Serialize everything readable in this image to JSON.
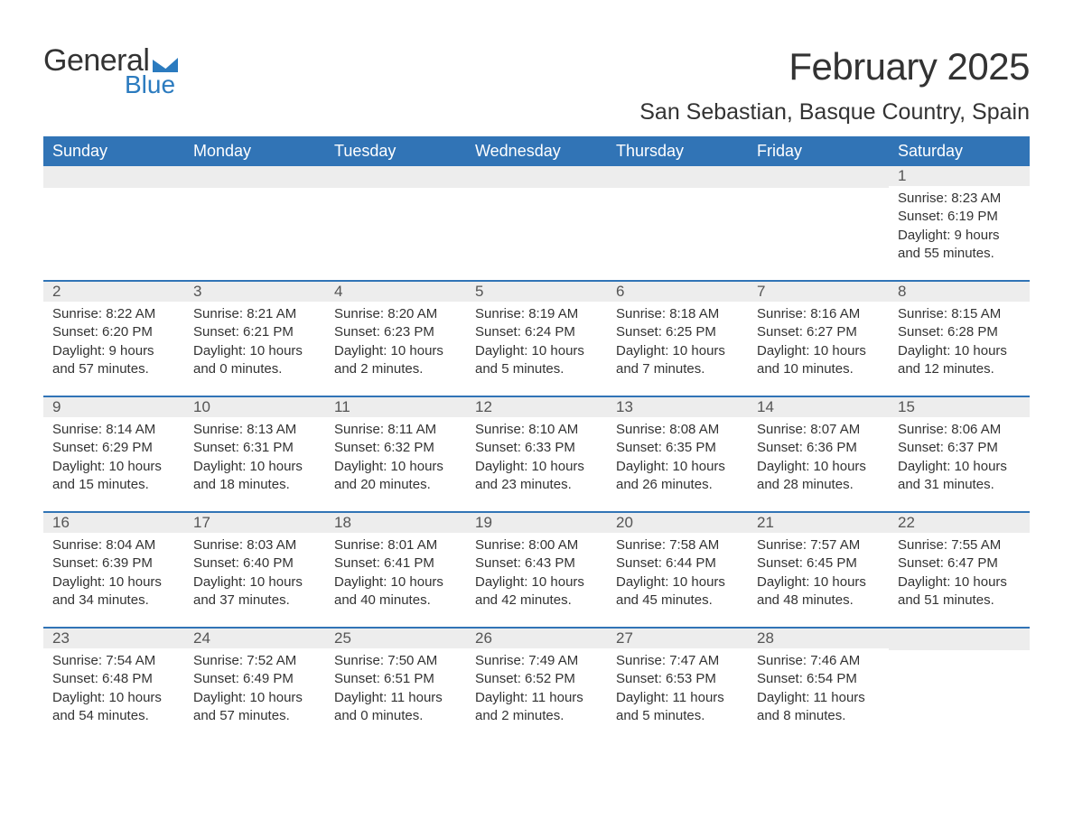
{
  "logo": {
    "line1": "General",
    "line2": "Blue",
    "mark_color": "#2b7bbf"
  },
  "title": "February 2025",
  "location": "San Sebastian, Basque Country, Spain",
  "colors": {
    "header_bg": "#3174b6",
    "header_text": "#ffffff",
    "daynum_bg": "#ededed",
    "divider": "#3174b6",
    "text": "#333333"
  },
  "weekdays": [
    "Sunday",
    "Monday",
    "Tuesday",
    "Wednesday",
    "Thursday",
    "Friday",
    "Saturday"
  ],
  "weeks": [
    [
      {
        "blank": true
      },
      {
        "blank": true
      },
      {
        "blank": true
      },
      {
        "blank": true
      },
      {
        "blank": true
      },
      {
        "blank": true
      },
      {
        "n": "1",
        "sr": "Sunrise: 8:23 AM",
        "ss": "Sunset: 6:19 PM",
        "d1": "Daylight: 9 hours",
        "d2": "and 55 minutes."
      }
    ],
    [
      {
        "n": "2",
        "sr": "Sunrise: 8:22 AM",
        "ss": "Sunset: 6:20 PM",
        "d1": "Daylight: 9 hours",
        "d2": "and 57 minutes."
      },
      {
        "n": "3",
        "sr": "Sunrise: 8:21 AM",
        "ss": "Sunset: 6:21 PM",
        "d1": "Daylight: 10 hours",
        "d2": "and 0 minutes."
      },
      {
        "n": "4",
        "sr": "Sunrise: 8:20 AM",
        "ss": "Sunset: 6:23 PM",
        "d1": "Daylight: 10 hours",
        "d2": "and 2 minutes."
      },
      {
        "n": "5",
        "sr": "Sunrise: 8:19 AM",
        "ss": "Sunset: 6:24 PM",
        "d1": "Daylight: 10 hours",
        "d2": "and 5 minutes."
      },
      {
        "n": "6",
        "sr": "Sunrise: 8:18 AM",
        "ss": "Sunset: 6:25 PM",
        "d1": "Daylight: 10 hours",
        "d2": "and 7 minutes."
      },
      {
        "n": "7",
        "sr": "Sunrise: 8:16 AM",
        "ss": "Sunset: 6:27 PM",
        "d1": "Daylight: 10 hours",
        "d2": "and 10 minutes."
      },
      {
        "n": "8",
        "sr": "Sunrise: 8:15 AM",
        "ss": "Sunset: 6:28 PM",
        "d1": "Daylight: 10 hours",
        "d2": "and 12 minutes."
      }
    ],
    [
      {
        "n": "9",
        "sr": "Sunrise: 8:14 AM",
        "ss": "Sunset: 6:29 PM",
        "d1": "Daylight: 10 hours",
        "d2": "and 15 minutes."
      },
      {
        "n": "10",
        "sr": "Sunrise: 8:13 AM",
        "ss": "Sunset: 6:31 PM",
        "d1": "Daylight: 10 hours",
        "d2": "and 18 minutes."
      },
      {
        "n": "11",
        "sr": "Sunrise: 8:11 AM",
        "ss": "Sunset: 6:32 PM",
        "d1": "Daylight: 10 hours",
        "d2": "and 20 minutes."
      },
      {
        "n": "12",
        "sr": "Sunrise: 8:10 AM",
        "ss": "Sunset: 6:33 PM",
        "d1": "Daylight: 10 hours",
        "d2": "and 23 minutes."
      },
      {
        "n": "13",
        "sr": "Sunrise: 8:08 AM",
        "ss": "Sunset: 6:35 PM",
        "d1": "Daylight: 10 hours",
        "d2": "and 26 minutes."
      },
      {
        "n": "14",
        "sr": "Sunrise: 8:07 AM",
        "ss": "Sunset: 6:36 PM",
        "d1": "Daylight: 10 hours",
        "d2": "and 28 minutes."
      },
      {
        "n": "15",
        "sr": "Sunrise: 8:06 AM",
        "ss": "Sunset: 6:37 PM",
        "d1": "Daylight: 10 hours",
        "d2": "and 31 minutes."
      }
    ],
    [
      {
        "n": "16",
        "sr": "Sunrise: 8:04 AM",
        "ss": "Sunset: 6:39 PM",
        "d1": "Daylight: 10 hours",
        "d2": "and 34 minutes."
      },
      {
        "n": "17",
        "sr": "Sunrise: 8:03 AM",
        "ss": "Sunset: 6:40 PM",
        "d1": "Daylight: 10 hours",
        "d2": "and 37 minutes."
      },
      {
        "n": "18",
        "sr": "Sunrise: 8:01 AM",
        "ss": "Sunset: 6:41 PM",
        "d1": "Daylight: 10 hours",
        "d2": "and 40 minutes."
      },
      {
        "n": "19",
        "sr": "Sunrise: 8:00 AM",
        "ss": "Sunset: 6:43 PM",
        "d1": "Daylight: 10 hours",
        "d2": "and 42 minutes."
      },
      {
        "n": "20",
        "sr": "Sunrise: 7:58 AM",
        "ss": "Sunset: 6:44 PM",
        "d1": "Daylight: 10 hours",
        "d2": "and 45 minutes."
      },
      {
        "n": "21",
        "sr": "Sunrise: 7:57 AM",
        "ss": "Sunset: 6:45 PM",
        "d1": "Daylight: 10 hours",
        "d2": "and 48 minutes."
      },
      {
        "n": "22",
        "sr": "Sunrise: 7:55 AM",
        "ss": "Sunset: 6:47 PM",
        "d1": "Daylight: 10 hours",
        "d2": "and 51 minutes."
      }
    ],
    [
      {
        "n": "23",
        "sr": "Sunrise: 7:54 AM",
        "ss": "Sunset: 6:48 PM",
        "d1": "Daylight: 10 hours",
        "d2": "and 54 minutes."
      },
      {
        "n": "24",
        "sr": "Sunrise: 7:52 AM",
        "ss": "Sunset: 6:49 PM",
        "d1": "Daylight: 10 hours",
        "d2": "and 57 minutes."
      },
      {
        "n": "25",
        "sr": "Sunrise: 7:50 AM",
        "ss": "Sunset: 6:51 PM",
        "d1": "Daylight: 11 hours",
        "d2": "and 0 minutes."
      },
      {
        "n": "26",
        "sr": "Sunrise: 7:49 AM",
        "ss": "Sunset: 6:52 PM",
        "d1": "Daylight: 11 hours",
        "d2": "and 2 minutes."
      },
      {
        "n": "27",
        "sr": "Sunrise: 7:47 AM",
        "ss": "Sunset: 6:53 PM",
        "d1": "Daylight: 11 hours",
        "d2": "and 5 minutes."
      },
      {
        "n": "28",
        "sr": "Sunrise: 7:46 AM",
        "ss": "Sunset: 6:54 PM",
        "d1": "Daylight: 11 hours",
        "d2": "and 8 minutes."
      },
      {
        "blank": true
      }
    ]
  ]
}
